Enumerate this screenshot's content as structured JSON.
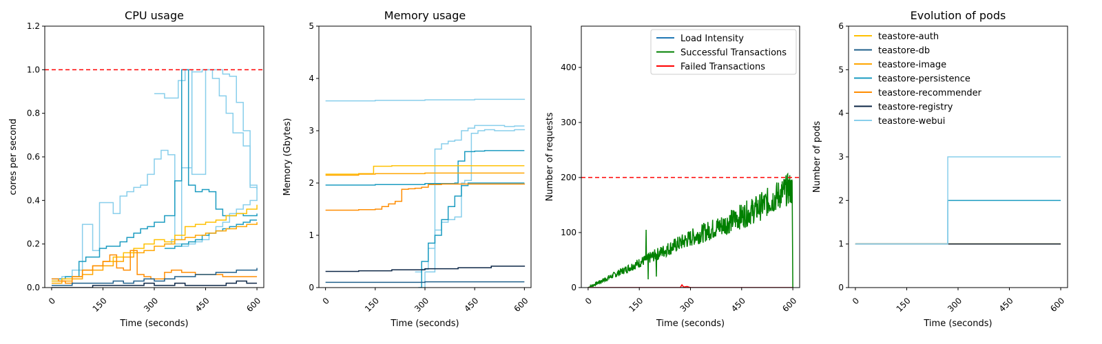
{
  "colors": {
    "teastore-auth": "#FFC000",
    "teastore-db": "#1F5F8B",
    "teastore-image": "#FFA500",
    "teastore-persistence": "#1A9BC0",
    "teastore-recommender": "#FF8C00",
    "teastore-registry": "#0B2545",
    "teastore-webui": "#87CEEB",
    "load": "#1f77b4",
    "success": "#008000",
    "failed": "#ff0000",
    "threshold": "#ff0000"
  },
  "chart_data": [
    {
      "type": "line",
      "title": "CPU usage",
      "xlabel": "Time (seconds)",
      "ylabel": "cores per second",
      "xlim": [
        -20,
        620
      ],
      "ylim": [
        0,
        1.2
      ],
      "xticks": [
        0,
        150,
        300,
        450,
        600
      ],
      "yticks": [
        0.0,
        0.2,
        0.4,
        0.6,
        0.8,
        1.0,
        1.2
      ],
      "ytick_labels": [
        "0.0",
        "0.2",
        "0.4",
        "0.6",
        "0.8",
        "1.0",
        "1.2"
      ],
      "threshold": 1.0,
      "series": [
        {
          "key": "teastore-webui",
          "x": [
            0,
            30,
            60,
            90,
            120,
            140,
            160,
            180,
            200,
            220,
            240,
            260,
            280,
            300,
            320,
            340,
            360,
            380,
            400,
            420,
            440,
            460,
            480,
            500,
            520,
            540,
            560,
            580,
            600
          ],
          "y": [
            0.03,
            0.05,
            0.08,
            0.29,
            0.17,
            0.39,
            0.39,
            0.34,
            0.42,
            0.44,
            0.46,
            0.47,
            0.52,
            0.59,
            0.63,
            0.61,
            0.2,
            0.19,
            0.2,
            0.21,
            0.22,
            0.25,
            0.28,
            0.3,
            0.34,
            0.36,
            0.38,
            0.4,
            0.45
          ]
        },
        {
          "key": "teastore-webui",
          "x": [
            300,
            330,
            350,
            370,
            390,
            410,
            430,
            450,
            470,
            490,
            510,
            530,
            560,
            580,
            600
          ],
          "y": [
            0.89,
            0.87,
            0.87,
            0.95,
            1.0,
            0.52,
            0.52,
            1.0,
            0.96,
            0.88,
            0.8,
            0.71,
            0.65,
            0.46,
            0.45
          ]
        },
        {
          "key": "teastore-webui",
          "x": [
            330,
            350,
            380,
            410,
            440,
            470,
            500,
            520,
            540,
            560,
            580,
            600
          ],
          "y": [
            0.2,
            0.22,
            0.55,
            0.99,
            1.0,
            1.0,
            0.98,
            0.97,
            0.85,
            0.72,
            0.47,
            0.45
          ]
        },
        {
          "key": "teastore-persistence",
          "x": [
            0,
            40,
            80,
            100,
            140,
            160,
            180,
            200,
            220,
            240,
            260,
            280,
            300,
            330,
            360,
            380,
            400,
            420,
            440,
            460,
            480,
            500,
            520,
            540,
            560,
            580,
            600
          ],
          "y": [
            0.04,
            0.05,
            0.12,
            0.14,
            0.18,
            0.19,
            0.19,
            0.21,
            0.23,
            0.25,
            0.27,
            0.28,
            0.3,
            0.33,
            0.49,
            1.0,
            0.47,
            0.44,
            0.45,
            0.44,
            0.36,
            0.33,
            0.33,
            0.34,
            0.33,
            0.33,
            0.34
          ]
        },
        {
          "key": "teastore-persistence",
          "x": [
            330,
            360,
            380,
            400,
            420,
            440,
            460,
            480,
            500,
            520,
            540,
            560,
            580,
            600
          ],
          "y": [
            0.18,
            0.19,
            0.2,
            0.21,
            0.22,
            0.24,
            0.25,
            0.26,
            0.27,
            0.28,
            0.29,
            0.3,
            0.31,
            0.31
          ]
        },
        {
          "key": "teastore-auth",
          "x": [
            0,
            30,
            60,
            90,
            120,
            150,
            180,
            210,
            240,
            270,
            300,
            330,
            360,
            390,
            420,
            450,
            480,
            510,
            540,
            570,
            600
          ],
          "y": [
            0.03,
            0.04,
            0.05,
            0.08,
            0.1,
            0.12,
            0.14,
            0.16,
            0.18,
            0.2,
            0.22,
            0.21,
            0.24,
            0.28,
            0.29,
            0.3,
            0.31,
            0.33,
            0.34,
            0.36,
            0.38
          ]
        },
        {
          "key": "teastore-image",
          "x": [
            0,
            30,
            60,
            90,
            120,
            150,
            180,
            210,
            240,
            270,
            300,
            330,
            360,
            390,
            420,
            450,
            480,
            510,
            540,
            570,
            600
          ],
          "y": [
            0.02,
            0.03,
            0.04,
            0.06,
            0.08,
            0.1,
            0.12,
            0.14,
            0.16,
            0.17,
            0.19,
            0.2,
            0.22,
            0.23,
            0.24,
            0.25,
            0.26,
            0.27,
            0.28,
            0.29,
            0.3
          ]
        },
        {
          "key": "teastore-recommender",
          "x": [
            0,
            20,
            40,
            60,
            90,
            120,
            150,
            170,
            190,
            210,
            230,
            250,
            270,
            290,
            310,
            330,
            350,
            380,
            420,
            460,
            500,
            540,
            580,
            600
          ],
          "y": [
            0.04,
            0.03,
            0.02,
            0.05,
            0.08,
            0.1,
            0.12,
            0.15,
            0.09,
            0.08,
            0.17,
            0.06,
            0.05,
            0.04,
            0.04,
            0.07,
            0.08,
            0.07,
            0.06,
            0.06,
            0.05,
            0.05,
            0.05,
            0.05
          ]
        },
        {
          "key": "teastore-db",
          "x": [
            0,
            60,
            120,
            150,
            180,
            210,
            240,
            270,
            300,
            330,
            360,
            390,
            420,
            450,
            480,
            510,
            540,
            570,
            600
          ],
          "y": [
            0.01,
            0.02,
            0.02,
            0.02,
            0.03,
            0.02,
            0.03,
            0.04,
            0.03,
            0.04,
            0.05,
            0.05,
            0.06,
            0.06,
            0.07,
            0.07,
            0.08,
            0.08,
            0.09
          ]
        },
        {
          "key": "teastore-registry",
          "x": [
            0,
            60,
            120,
            180,
            240,
            270,
            300,
            330,
            360,
            390,
            420,
            450,
            480,
            510,
            540,
            570,
            600
          ],
          "y": [
            0.0,
            0.0,
            0.01,
            0.01,
            0.01,
            0.02,
            0.01,
            0.01,
            0.02,
            0.01,
            0.01,
            0.01,
            0.01,
            0.02,
            0.03,
            0.02,
            0.02
          ]
        }
      ]
    },
    {
      "type": "line",
      "title": "Memory usage",
      "xlabel": "Time (seconds)",
      "ylabel": "Memory (Gbytes)",
      "xlim": [
        -20,
        620
      ],
      "ylim": [
        0,
        5
      ],
      "xticks": [
        0,
        150,
        300,
        450,
        600
      ],
      "yticks": [
        0,
        1,
        2,
        3,
        4,
        5
      ],
      "ytick_labels": [
        "0",
        "1",
        "2",
        "3",
        "4",
        "5"
      ],
      "series": [
        {
          "key": "teastore-webui",
          "x": [
            0,
            150,
            300,
            450,
            600
          ],
          "y": [
            3.57,
            3.58,
            3.59,
            3.6,
            3.61
          ]
        },
        {
          "key": "teastore-webui",
          "x": [
            270,
            290,
            310,
            330,
            350,
            370,
            390,
            410,
            430,
            450,
            480,
            510,
            540,
            570,
            600
          ],
          "y": [
            0.3,
            0.35,
            0.75,
            2.65,
            2.75,
            2.8,
            2.82,
            3.0,
            3.05,
            3.1,
            3.1,
            3.1,
            3.08,
            3.09,
            3.09
          ]
        },
        {
          "key": "teastore-webui",
          "x": [
            285,
            300,
            330,
            350,
            370,
            390,
            410,
            420,
            440,
            460,
            480,
            510,
            540,
            570,
            600
          ],
          "y": [
            0.0,
            0.3,
            1.1,
            1.25,
            1.3,
            1.35,
            2.0,
            2.05,
            2.95,
            3.0,
            3.02,
            3.0,
            3.0,
            3.02,
            3.03
          ]
        },
        {
          "key": "teastore-persistence",
          "x": [
            0,
            150,
            300,
            390,
            400,
            420,
            450,
            480,
            510,
            540,
            570,
            600
          ],
          "y": [
            1.96,
            1.97,
            1.99,
            2.0,
            2.42,
            2.6,
            2.61,
            2.62,
            2.62,
            2.62,
            2.62,
            2.62
          ]
        },
        {
          "key": "teastore-persistence",
          "x": [
            280,
            290,
            310,
            330,
            350,
            370,
            390,
            410,
            430,
            450,
            480,
            510,
            540,
            570,
            600
          ],
          "y": [
            0.0,
            0.5,
            0.85,
            1.0,
            1.3,
            1.55,
            1.75,
            1.95,
            2.0,
            2.0,
            2.0,
            2.0,
            2.0,
            2.0,
            2.0
          ]
        },
        {
          "key": "teastore-auth",
          "x": [
            0,
            100,
            145,
            200,
            300,
            400,
            500,
            600
          ],
          "y": [
            2.17,
            2.18,
            2.32,
            2.33,
            2.33,
            2.33,
            2.33,
            2.33
          ]
        },
        {
          "key": "teastore-image",
          "x": [
            0,
            100,
            150,
            300,
            450,
            600
          ],
          "y": [
            2.15,
            2.17,
            2.18,
            2.19,
            2.19,
            2.19
          ]
        },
        {
          "key": "teastore-recommender",
          "x": [
            0,
            100,
            150,
            170,
            190,
            210,
            230,
            250,
            270,
            290,
            310,
            350,
            450,
            600
          ],
          "y": [
            1.48,
            1.49,
            1.5,
            1.55,
            1.6,
            1.65,
            1.88,
            1.89,
            1.9,
            1.92,
            1.97,
            1.98,
            1.98,
            1.99
          ]
        },
        {
          "key": "teastore-registry",
          "x": [
            0,
            100,
            200,
            300,
            400,
            500,
            600
          ],
          "y": [
            0.31,
            0.32,
            0.34,
            0.36,
            0.38,
            0.41,
            0.42
          ]
        },
        {
          "key": "teastore-db",
          "x": [
            0,
            150,
            300,
            450,
            600
          ],
          "y": [
            0.1,
            0.1,
            0.11,
            0.11,
            0.11
          ]
        }
      ]
    },
    {
      "type": "line",
      "title": "",
      "xlabel": "Time (seconds)",
      "ylabel": "Number of requests",
      "xlim": [
        -20,
        620
      ],
      "ylim": [
        0,
        475
      ],
      "xticks": [
        0,
        150,
        300,
        450,
        600
      ],
      "yticks": [
        0,
        100,
        200,
        300,
        400
      ],
      "ytick_labels": [
        "0",
        "100",
        "200",
        "300",
        "400"
      ],
      "threshold": 200,
      "legend_placement": "top-right",
      "series": [
        {
          "name": "Load Intensity",
          "key": "load",
          "x": [
            0,
            600
          ],
          "y": [
            0,
            0
          ]
        },
        {
          "name": "Successful Transactions",
          "key": "success",
          "x": [],
          "y": []
        },
        {
          "name": "Failed Transactions",
          "key": "failed",
          "x": [
            0,
            270,
            275,
            280,
            290,
            300,
            600
          ],
          "y": [
            0,
            0,
            5,
            1,
            2,
            0,
            0
          ]
        }
      ],
      "success_trend": {
        "x": [
          0,
          100,
          200,
          300,
          400,
          500,
          590,
          598,
          600
        ],
        "y": [
          0,
          30,
          60,
          90,
          115,
          145,
          180,
          175,
          0
        ]
      }
    },
    {
      "type": "line",
      "title": "Evolution of pods",
      "xlabel": "Time (seconds)",
      "ylabel": "Number of pods",
      "xlim": [
        -20,
        620
      ],
      "ylim": [
        0,
        6
      ],
      "xticks": [
        0,
        150,
        300,
        450,
        600
      ],
      "yticks": [
        0,
        1,
        2,
        3,
        4,
        5,
        6
      ],
      "ytick_labels": [
        "0",
        "1",
        "2",
        "3",
        "4",
        "5",
        "6"
      ],
      "legend_placement": "top-left",
      "series": [
        {
          "name": "teastore-auth",
          "key": "teastore-auth",
          "x": [
            0,
            600
          ],
          "y": [
            1,
            1
          ]
        },
        {
          "name": "teastore-db",
          "key": "teastore-db",
          "x": [
            0,
            600
          ],
          "y": [
            1,
            1
          ]
        },
        {
          "name": "teastore-image",
          "key": "teastore-image",
          "x": [
            0,
            600
          ],
          "y": [
            1,
            1
          ]
        },
        {
          "name": "teastore-persistence",
          "key": "teastore-persistence",
          "x": [
            0,
            270,
            270,
            600
          ],
          "y": [
            1,
            1,
            2,
            2
          ]
        },
        {
          "name": "teastore-recommender",
          "key": "teastore-recommender",
          "x": [
            0,
            600
          ],
          "y": [
            1,
            1
          ]
        },
        {
          "name": "teastore-registry",
          "key": "teastore-registry",
          "x": [
            0,
            600
          ],
          "y": [
            1,
            1
          ]
        },
        {
          "name": "teastore-webui",
          "key": "teastore-webui",
          "x": [
            0,
            270,
            270,
            600
          ],
          "y": [
            1,
            1,
            3,
            3
          ]
        }
      ]
    }
  ]
}
